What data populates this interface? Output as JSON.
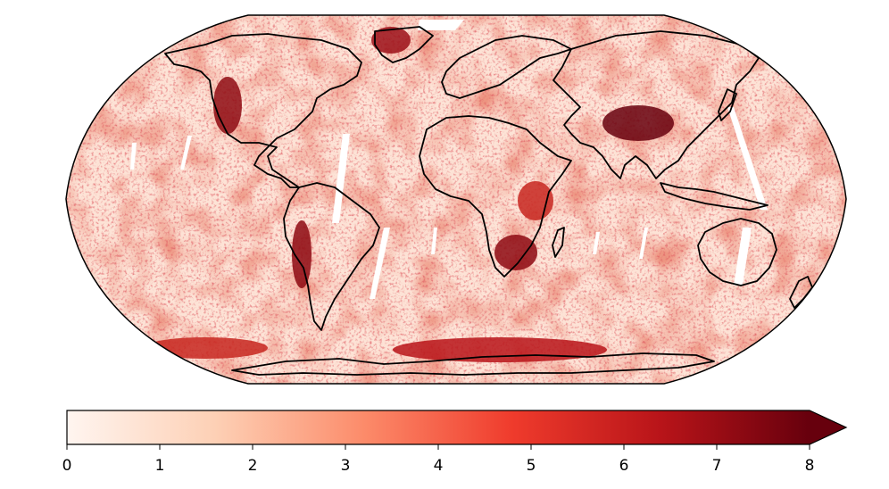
{
  "figure": {
    "projection": "Robinson",
    "colormap": {
      "name": "Reds",
      "stops": [
        "#fff5f0",
        "#fdd0b5",
        "#fc8b6a",
        "#ef3b2c",
        "#b81419",
        "#67000d"
      ]
    },
    "coastline_color": "#000000",
    "missing_data_color": "#ffffff"
  },
  "colorbar": {
    "min": 0,
    "max": 8,
    "extend": "max",
    "orientation": "horizontal",
    "ticks": [
      "0",
      "1",
      "2",
      "3",
      "4",
      "5",
      "6",
      "7",
      "8"
    ]
  }
}
